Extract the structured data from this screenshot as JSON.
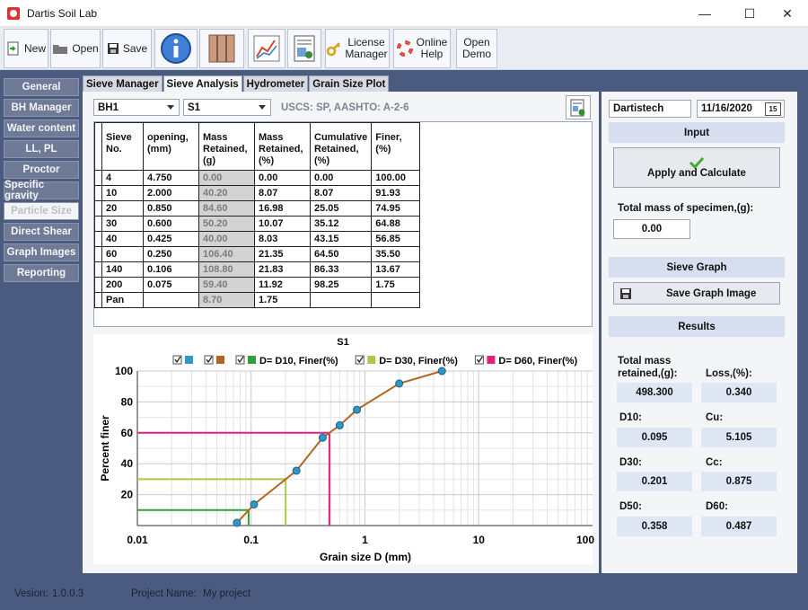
{
  "window": {
    "title": "Dartis Soil Lab",
    "minimize": "—",
    "maximize": "☐",
    "close": "✕"
  },
  "toolbar": {
    "new": "New",
    "open": "Open",
    "save": "Save",
    "license_line1": "License",
    "license_line2": "Manager",
    "help_line1": "Online",
    "help_line2": "Help",
    "demo_line1": "Open",
    "demo_line2": "Demo"
  },
  "sidebar": {
    "items": [
      {
        "label": "General"
      },
      {
        "label": "BH Manager"
      },
      {
        "label": "Water content"
      },
      {
        "label": "LL, PL"
      },
      {
        "label": "Proctor"
      },
      {
        "label": "Specific gravity"
      },
      {
        "label": "Particle Size"
      },
      {
        "label": "Direct Shear"
      },
      {
        "label": "Graph Images"
      },
      {
        "label": "Reporting"
      }
    ],
    "active_index": 6
  },
  "tabs": [
    {
      "label": "Sieve Manager"
    },
    {
      "label": "Sieve Analysis"
    },
    {
      "label": "Hydrometer"
    },
    {
      "label": "Grain Size Plot"
    }
  ],
  "selectors": {
    "borehole": "BH1",
    "sample": "S1"
  },
  "classification": "USCS: SP, AASHTO: A-2-6",
  "table": {
    "headers": [
      "Sieve\nNo.",
      "opening,\n(mm)",
      "Mass\nRetained,\n(g)",
      "Mass\nRetained,\n(%)",
      "Cumulative\nRetained,\n(%)",
      "Finer,(%)"
    ],
    "rows": [
      [
        "4",
        "4.750",
        "0.00",
        "0.00",
        "0.00",
        "100.00"
      ],
      [
        "10",
        "2.000",
        "40.20",
        "8.07",
        "8.07",
        "91.93"
      ],
      [
        "20",
        "0.850",
        "84.60",
        "16.98",
        "25.05",
        "74.95"
      ],
      [
        "30",
        "0.600",
        "50.20",
        "10.07",
        "35.12",
        "64.88"
      ],
      [
        "40",
        "0.425",
        "40.00",
        "8.03",
        "43.15",
        "56.85"
      ],
      [
        "60",
        "0.250",
        "106.40",
        "21.35",
        "64.50",
        "35.50"
      ],
      [
        "140",
        "0.106",
        "108.80",
        "21.83",
        "86.33",
        "13.67"
      ],
      [
        "200",
        "0.075",
        "59.40",
        "11.92",
        "98.25",
        "1.75"
      ],
      [
        "Pan",
        "",
        "8.70",
        "1.75",
        "",
        ""
      ]
    ]
  },
  "chart_data": {
    "type": "line",
    "title": "S1",
    "xlabel": "Grain size D (mm)",
    "ylabel": "Percent finer",
    "x_scale": "log",
    "xlim": [
      0.01,
      100
    ],
    "ylim": [
      0,
      100
    ],
    "x_ticks": [
      "0.01",
      "0.1",
      "1",
      "10",
      "100"
    ],
    "y_ticks": [
      "20",
      "40",
      "60",
      "80",
      "100"
    ],
    "grid": true,
    "legend": [
      "",
      "",
      "D= D10, Finer(%)",
      "D= D30, Finer(%)",
      "D= D60, Finer(%)"
    ],
    "legend_colors": [
      "#2e97c9",
      "#b5651d",
      "#2fa13a",
      "#a9c94a",
      "#e0207a"
    ],
    "series": [
      {
        "x": [
          4.75,
          2.0,
          0.85,
          0.6,
          0.425,
          0.25,
          0.106,
          0.075
        ],
        "y": [
          100.0,
          91.93,
          74.95,
          64.88,
          56.85,
          35.5,
          13.67,
          1.75
        ]
      }
    ],
    "d_lines": [
      {
        "name": "D10",
        "d": 0.095,
        "finer": 10,
        "color": "#2fa13a"
      },
      {
        "name": "D30",
        "d": 0.201,
        "finer": 30,
        "color": "#a9c94a"
      },
      {
        "name": "D60",
        "d": 0.487,
        "finer": 60,
        "color": "#e0207a"
      }
    ]
  },
  "right": {
    "company": "Dartistech",
    "date": "11/16/2020",
    "calendar_day": "15",
    "input_header": "Input",
    "apply_label": "Apply and Calculate",
    "total_mass_label": "Total mass of specimen,(g):",
    "total_mass_value": "0.00",
    "sieve_graph_header": "Sieve Graph",
    "save_graph_label": "Save Graph Image",
    "results_header": "Results",
    "retained_label_1": "Total mass",
    "retained_label_2": "retained,(g):",
    "retained_value": "498.300",
    "loss_label": "Loss,(%):",
    "loss_value": "0.340",
    "d10_label": "D10:",
    "d10_value": "0.095",
    "cu_label": "Cu:",
    "cu_value": "5.105",
    "d30_label": "D30:",
    "d30_value": "0.201",
    "cc_label": "Cc:",
    "cc_value": "0.875",
    "d50_label": "D50:",
    "d50_value": "0.358",
    "d60_label": "D60:",
    "d60_value": "0.487"
  },
  "status": {
    "version_label": "Vesion:",
    "version": "1.0.0.3",
    "project_label": "Project Name:",
    "project": "My project"
  }
}
